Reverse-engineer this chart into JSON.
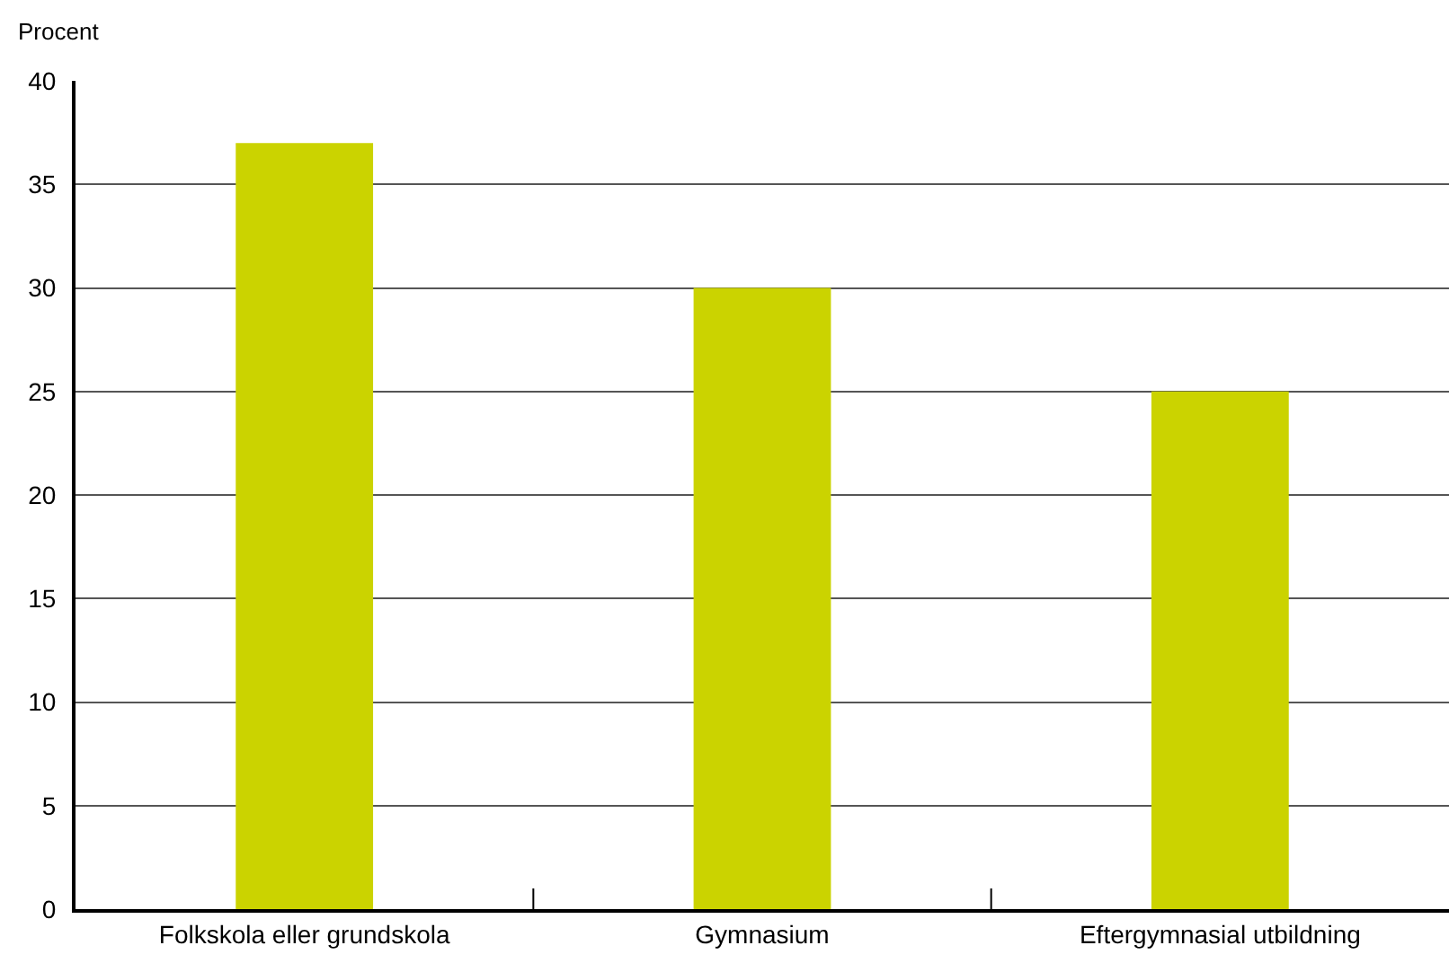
{
  "chart_data": {
    "type": "bar",
    "ylabel": "Procent",
    "categories": [
      "Folkskola eller grundskola",
      "Gymnasium",
      "Eftergymnasial utbildning"
    ],
    "values": [
      37,
      30,
      25
    ],
    "color": "#cbd300",
    "ylim": [
      0,
      40
    ],
    "yticks": [
      0,
      5,
      10,
      15,
      20,
      25,
      30,
      35,
      40
    ],
    "grid": "y"
  }
}
